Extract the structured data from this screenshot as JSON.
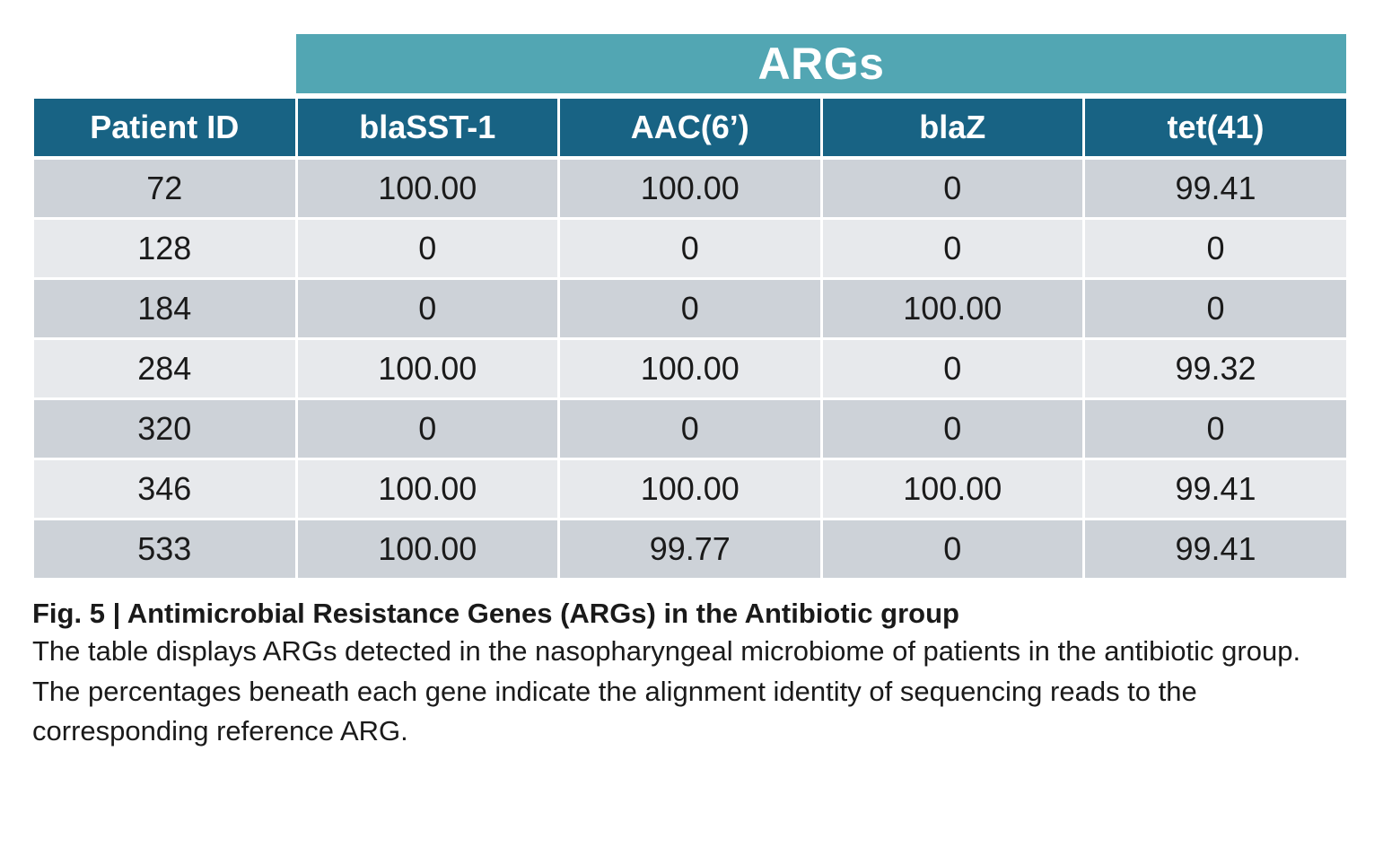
{
  "table": {
    "super_header": "ARGs",
    "columns": [
      "Patient ID",
      "blaSST-1",
      "AAC(6’)",
      "blaZ",
      "tet(41)"
    ],
    "rows": [
      [
        "72",
        "100.00",
        "100.00",
        "0",
        "99.41"
      ],
      [
        "128",
        "0",
        "0",
        "0",
        "0"
      ],
      [
        "184",
        "0",
        "0",
        "100.00",
        "0"
      ],
      [
        "284",
        "100.00",
        "100.00",
        "0",
        "99.32"
      ],
      [
        "320",
        "0",
        "0",
        "0",
        "0"
      ],
      [
        "346",
        "100.00",
        "100.00",
        "100.00",
        "99.41"
      ],
      [
        "533",
        "100.00",
        "99.77",
        "0",
        "99.41"
      ]
    ],
    "colors": {
      "super_header_bg": "#52a6b3",
      "header_bg": "#186384",
      "row_dark": "#cdd2d8",
      "row_light": "#e7e9ec"
    }
  },
  "caption": {
    "title": "Fig. 5 | Antimicrobial Resistance Genes (ARGs) in the Antibiotic group",
    "body": "The table displays ARGs detected in the nasopharyngeal microbiome of patients in the antibiotic group. The percentages beneath each gene indicate the alignment identity of sequencing reads to the corresponding reference ARG."
  }
}
